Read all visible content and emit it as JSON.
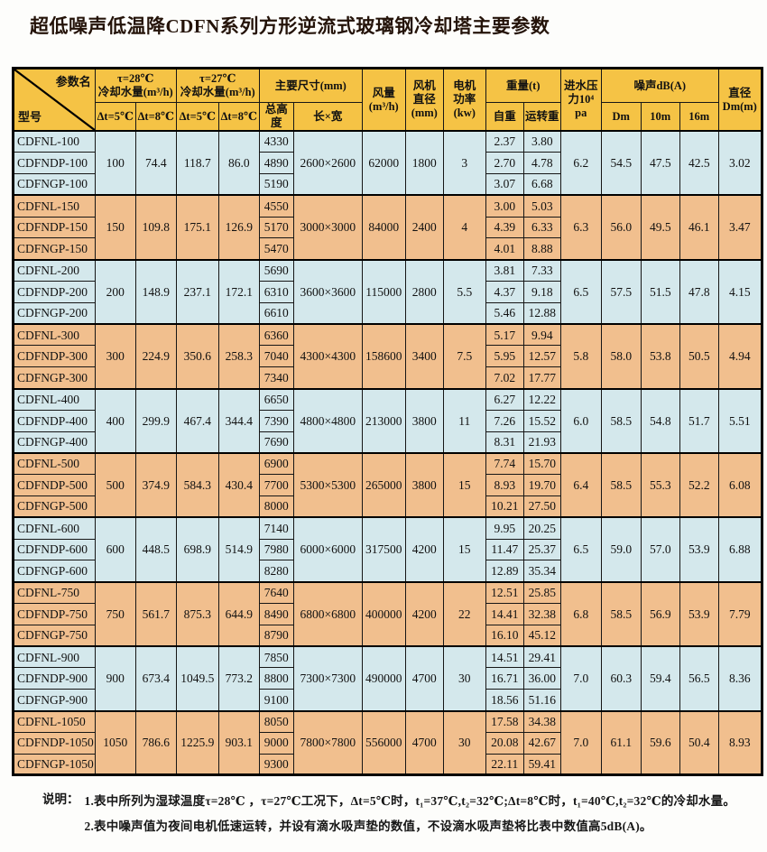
{
  "page": {
    "title": "超低噪声低温降CDFN系列方形逆流式玻璃钢冷却塔主要参数"
  },
  "colors": {
    "header_bg": "#F5C345",
    "row_blue": "#D4E8EC",
    "row_orange": "#F1BF8E",
    "border": "#000000"
  },
  "table": {
    "header": {
      "corner_top": "参数名",
      "corner_bottom": "型号",
      "t28": "τ=28℃\n冷却水量(m³/h)",
      "t27": "τ=27℃\n冷却水量(m³/h)",
      "dt5": "Δt=5℃",
      "dt8": "Δt=8℃",
      "dims": "主要尺寸(mm)",
      "total_height": "总高度",
      "length_width": "长×宽",
      "airflow": "风量\n(m³/h)",
      "fan_diameter": "风机\n直径\n(mm)",
      "motor_power": "电机\n功率\n(kw)",
      "weight": "重量(t)",
      "self_weight": "自重",
      "run_weight": "运转重",
      "inlet_pressure": "进水压\n力10⁴\npa",
      "noise": "噪声dB(A)",
      "noise_dm": "Dm",
      "noise_10m": "10m",
      "noise_16m": "16m",
      "diameter": "直径\nDm(m)"
    },
    "groups": [
      {
        "tint": "blue",
        "models": [
          "CDFNL-100",
          "CDFNDP-100",
          "CDFNGP-100"
        ],
        "t28_dt5": "100",
        "t28_dt8": "74.4",
        "t27_dt5": "118.7",
        "t27_dt8": "86.0",
        "heights": [
          "4330",
          "4890",
          "5190"
        ],
        "length_width": "2600×2600",
        "airflow": "62000",
        "fan_diameter": "1800",
        "motor_power": "3",
        "weights": [
          [
            "2.37",
            "3.80"
          ],
          [
            "2.70",
            "4.78"
          ],
          [
            "3.07",
            "6.68"
          ]
        ],
        "inlet_pressure": "6.2",
        "noise": [
          "54.5",
          "47.5",
          "42.5"
        ],
        "diameter": "3.02"
      },
      {
        "tint": "orange",
        "models": [
          "CDFNL-150",
          "CDFNDP-150",
          "CDFNGP-150"
        ],
        "t28_dt5": "150",
        "t28_dt8": "109.8",
        "t27_dt5": "175.1",
        "t27_dt8": "126.9",
        "heights": [
          "4550",
          "5170",
          "5470"
        ],
        "length_width": "3000×3000",
        "airflow": "84000",
        "fan_diameter": "2400",
        "motor_power": "4",
        "weights": [
          [
            "3.00",
            "5.03"
          ],
          [
            "4.39",
            "6.33"
          ],
          [
            "4.01",
            "8.88"
          ]
        ],
        "inlet_pressure": "6.3",
        "noise": [
          "56.0",
          "49.5",
          "46.1"
        ],
        "diameter": "3.47"
      },
      {
        "tint": "blue",
        "models": [
          "CDFNL-200",
          "CDFNDP-200",
          "CDFNGP-200"
        ],
        "t28_dt5": "200",
        "t28_dt8": "148.9",
        "t27_dt5": "237.1",
        "t27_dt8": "172.1",
        "heights": [
          "5690",
          "6310",
          "6610"
        ],
        "length_width": "3600×3600",
        "airflow": "115000",
        "fan_diameter": "2800",
        "motor_power": "5.5",
        "weights": [
          [
            "3.81",
            "7.33"
          ],
          [
            "4.37",
            "9.18"
          ],
          [
            "5.46",
            "12.88"
          ]
        ],
        "inlet_pressure": "6.5",
        "noise": [
          "57.5",
          "51.5",
          "47.8"
        ],
        "diameter": "4.15"
      },
      {
        "tint": "orange",
        "models": [
          "CDFNL-300",
          "CDFNDP-300",
          "CDFNGP-300"
        ],
        "t28_dt5": "300",
        "t28_dt8": "224.9",
        "t27_dt5": "350.6",
        "t27_dt8": "258.3",
        "heights": [
          "6360",
          "7040",
          "7340"
        ],
        "length_width": "4300×4300",
        "airflow": "158600",
        "fan_diameter": "3400",
        "motor_power": "7.5",
        "weights": [
          [
            "5.17",
            "9.94"
          ],
          [
            "5.95",
            "12.57"
          ],
          [
            "7.02",
            "17.77"
          ]
        ],
        "inlet_pressure": "5.8",
        "noise": [
          "58.0",
          "53.8",
          "50.5"
        ],
        "diameter": "4.94"
      },
      {
        "tint": "blue",
        "models": [
          "CDFNL-400",
          "CDFNDP-400",
          "CDFNGP-400"
        ],
        "t28_dt5": "400",
        "t28_dt8": "299.9",
        "t27_dt5": "467.4",
        "t27_dt8": "344.4",
        "heights": [
          "6650",
          "7390",
          "7690"
        ],
        "length_width": "4800×4800",
        "airflow": "213000",
        "fan_diameter": "3800",
        "motor_power": "11",
        "weights": [
          [
            "6.27",
            "12.22"
          ],
          [
            "7.26",
            "15.52"
          ],
          [
            "8.31",
            "21.93"
          ]
        ],
        "inlet_pressure": "6.0",
        "noise": [
          "58.5",
          "54.8",
          "51.7"
        ],
        "diameter": "5.51"
      },
      {
        "tint": "orange",
        "models": [
          "CDFNL-500",
          "CDFNDP-500",
          "CDFNGP-500"
        ],
        "t28_dt5": "500",
        "t28_dt8": "374.9",
        "t27_dt5": "584.3",
        "t27_dt8": "430.4",
        "heights": [
          "6900",
          "7700",
          "8000"
        ],
        "length_width": "5300×5300",
        "airflow": "265000",
        "fan_diameter": "3800",
        "motor_power": "15",
        "weights": [
          [
            "7.74",
            "15.70"
          ],
          [
            "8.93",
            "19.70"
          ],
          [
            "10.21",
            "27.50"
          ]
        ],
        "inlet_pressure": "6.4",
        "noise": [
          "58.5",
          "55.3",
          "52.2"
        ],
        "diameter": "6.08"
      },
      {
        "tint": "blue",
        "models": [
          "CDFNL-600",
          "CDFNDP-600",
          "CDFNGP-600"
        ],
        "t28_dt5": "600",
        "t28_dt8": "448.5",
        "t27_dt5": "698.9",
        "t27_dt8": "514.9",
        "heights": [
          "7140",
          "7980",
          "8280"
        ],
        "length_width": "6000×6000",
        "airflow": "317500",
        "fan_diameter": "4200",
        "motor_power": "15",
        "weights": [
          [
            "9.95",
            "20.25"
          ],
          [
            "11.47",
            "25.37"
          ],
          [
            "12.89",
            "35.34"
          ]
        ],
        "inlet_pressure": "6.5",
        "noise": [
          "59.0",
          "57.0",
          "53.9"
        ],
        "diameter": "6.88"
      },
      {
        "tint": "orange",
        "models": [
          "CDFNL-750",
          "CDFNDP-750",
          "CDFNGP-750"
        ],
        "t28_dt5": "750",
        "t28_dt8": "561.7",
        "t27_dt5": "875.3",
        "t27_dt8": "644.9",
        "heights": [
          "7640",
          "8490",
          "8790"
        ],
        "length_width": "6800×6800",
        "airflow": "400000",
        "fan_diameter": "4200",
        "motor_power": "22",
        "weights": [
          [
            "12.51",
            "25.85"
          ],
          [
            "14.41",
            "32.38"
          ],
          [
            "16.10",
            "45.12"
          ]
        ],
        "inlet_pressure": "6.8",
        "noise": [
          "58.5",
          "56.9",
          "53.9"
        ],
        "diameter": "7.79"
      },
      {
        "tint": "blue",
        "models": [
          "CDFNL-900",
          "CDFNDP-900",
          "CDFNGP-900"
        ],
        "t28_dt5": "900",
        "t28_dt8": "673.4",
        "t27_dt5": "1049.5",
        "t27_dt8": "773.2",
        "heights": [
          "7850",
          "8800",
          "9100"
        ],
        "length_width": "7300×7300",
        "airflow": "490000",
        "fan_diameter": "4700",
        "motor_power": "30",
        "weights": [
          [
            "14.51",
            "29.41"
          ],
          [
            "16.71",
            "36.00"
          ],
          [
            "18.56",
            "51.16"
          ]
        ],
        "inlet_pressure": "7.0",
        "noise": [
          "60.3",
          "59.4",
          "56.5"
        ],
        "diameter": "8.36"
      },
      {
        "tint": "orange",
        "models": [
          "CDFNL-1050",
          "CDFNDP-1050",
          "CDFNGP-1050"
        ],
        "t28_dt5": "1050",
        "t28_dt8": "786.6",
        "t27_dt5": "1225.9",
        "t27_dt8": "903.1",
        "heights": [
          "8050",
          "9000",
          "9300"
        ],
        "length_width": "7800×7800",
        "airflow": "556000",
        "fan_diameter": "4700",
        "motor_power": "30",
        "weights": [
          [
            "17.58",
            "34.38"
          ],
          [
            "20.08",
            "42.67"
          ],
          [
            "22.11",
            "59.41"
          ]
        ],
        "inlet_pressure": "7.0",
        "noise": [
          "61.1",
          "59.6",
          "50.4"
        ],
        "diameter": "8.93"
      }
    ]
  },
  "notes": {
    "label": "说明：",
    "line1": "1.表中所列为湿球温度τ=28℃ ，τ=27℃工况下，Δt=5℃时，t₁=37℃,t₂=32℃;Δt=8℃时，t₁=40℃,t₂=32℃的冷却水量。",
    "line2": "2.表中噪声值为夜间电机低速运转，并设有滴水吸声垫的数值，不设滴水吸声垫将比表中数值高5dB(A)。"
  }
}
